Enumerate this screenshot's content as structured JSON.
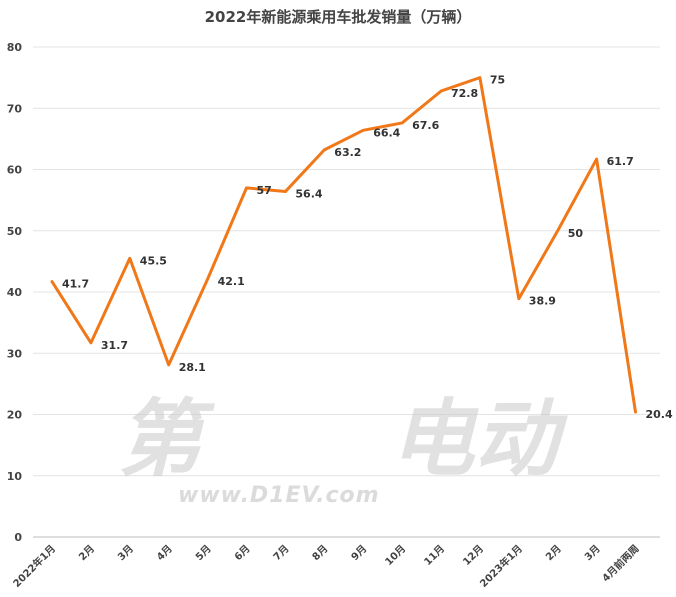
{
  "chart_data": {
    "type": "line",
    "title": "2022年新能源乘用车批发销量（万辆）",
    "categories": [
      "2022年1月",
      "2月",
      "3月",
      "4月",
      "5月",
      "6月",
      "7月",
      "8月",
      "9月",
      "10月",
      "11月",
      "12月",
      "2023年1月",
      "2月",
      "3月",
      "4月前两周"
    ],
    "series": [
      {
        "values": [
          41.7,
          31.7,
          45.5,
          28.1,
          42.1,
          57,
          56.4,
          63.2,
          66.4,
          67.6,
          72.8,
          75,
          38.9,
          50,
          61.7,
          20.4
        ]
      }
    ],
    "data_labels": [
      "41.7",
      "31.7",
      "45.5",
      "28.1",
      "42.1",
      "57",
      "56.4",
      "63.2",
      "66.4",
      "67.6",
      "72.8",
      "75",
      "38.9",
      "50",
      "61.7",
      "20.4"
    ],
    "ylim": [
      0,
      80
    ],
    "yticks": [
      0,
      10,
      20,
      30,
      40,
      50,
      60,
      70,
      80
    ],
    "ytick_labels": [
      "0",
      "10",
      "20",
      "30",
      "40",
      "50",
      "60",
      "70",
      "80"
    ],
    "grid": true,
    "line_color": "#f07818"
  },
  "watermark": {
    "text_left": "第",
    "text_right": "电动",
    "url": "www.D1EV.com"
  }
}
